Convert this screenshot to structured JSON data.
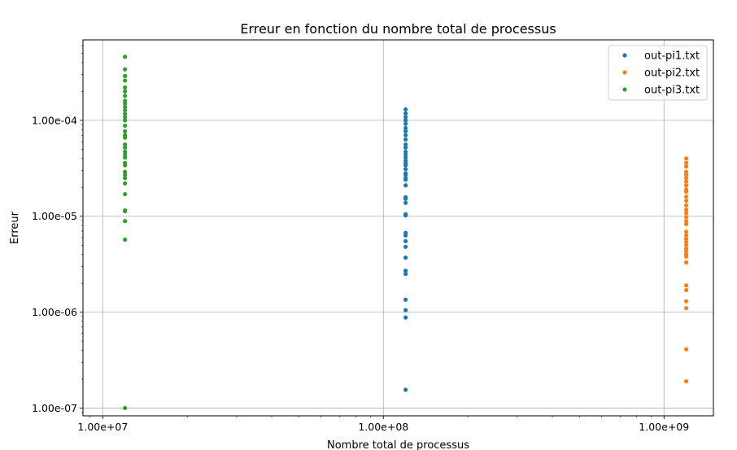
{
  "chart_data": {
    "type": "scatter",
    "title": "Erreur en fonction du nombre total de processus",
    "xlabel": "Nombre total de processus",
    "ylabel": "Erreur",
    "xscale": "log",
    "yscale": "log",
    "xlim": [
      8500000,
      1500000000
    ],
    "ylim": [
      8.3e-08,
      0.00069
    ],
    "x_ticks": [
      10000000,
      100000000,
      1000000000
    ],
    "x_tick_labels": [
      "1.00e+07",
      "1.00e+08",
      "1.00e+09"
    ],
    "y_ticks": [
      1e-07,
      1e-06,
      1e-05,
      0.0001
    ],
    "y_tick_labels": [
      "1.00e-07",
      "1.00e-06",
      "1.00e-05",
      "1.00e-04"
    ],
    "grid": true,
    "legend_position": "top-right",
    "series": [
      {
        "name": "out-pi1.txt",
        "color": "#1f77b4",
        "x": 120000000,
        "y": [
          0.00013,
          0.000118,
          0.000108,
          0.0001,
          9.2e-05,
          8.3e-05,
          7.7e-05,
          7e-05,
          6.3e-05,
          5.6e-05,
          5.2e-05,
          4.7e-05,
          4.4e-05,
          4.1e-05,
          3.8e-05,
          3.6e-05,
          3.4e-05,
          3.1e-05,
          2.8e-05,
          2.7e-05,
          2.5e-05,
          2.4e-05,
          2.1e-05,
          1.58e-05,
          1.52e-05,
          1.38e-05,
          1.05e-05,
          1.02e-05,
          6.7e-06,
          6.3e-06,
          5.5e-06,
          4.8e-06,
          3.7e-06,
          2.7e-06,
          2.5e-06,
          1.35e-06,
          1.05e-06,
          8.8e-07,
          1.55e-07
        ]
      },
      {
        "name": "out-pi2.txt",
        "color": "#ff7f0e",
        "x": 1200000000,
        "y": [
          4e-05,
          3.6e-05,
          3.3e-05,
          2.9e-05,
          2.7e-05,
          2.5e-05,
          2.3e-05,
          2.1e-05,
          1.9e-05,
          1.8e-05,
          1.6e-05,
          1.45e-05,
          1.3e-05,
          1.17e-05,
          1.08e-05,
          9.8e-06,
          8.9e-06,
          8.3e-06,
          6.9e-06,
          6.3e-06,
          5.8e-06,
          5.4e-06,
          5e-06,
          4.6e-06,
          4.3e-06,
          4e-06,
          3.8e-06,
          3.3e-06,
          1.9e-06,
          1.7e-06,
          1.3e-06,
          1.1e-06,
          4.1e-07,
          1.9e-07
        ]
      },
      {
        "name": "out-pi3.txt",
        "color": "#2ca02c",
        "x": 12000000,
        "y": [
          0.00046,
          0.00034,
          0.00029,
          0.00026,
          0.00022,
          0.0002,
          0.00018,
          0.00016,
          0.00015,
          0.000138,
          0.000128,
          0.000117,
          0.000108,
          0.0001,
          8.8e-05,
          7.7e-05,
          7e-05,
          6.6e-05,
          5.6e-05,
          5.2e-05,
          4.7e-05,
          4.4e-05,
          4.1e-05,
          3.6e-05,
          3.4e-05,
          2.9e-05,
          2.7e-05,
          2.5e-05,
          2.2e-05,
          1.7e-05,
          1.15e-05,
          1.13e-05,
          8.9e-06,
          5.7e-06,
          1e-07
        ]
      }
    ]
  }
}
